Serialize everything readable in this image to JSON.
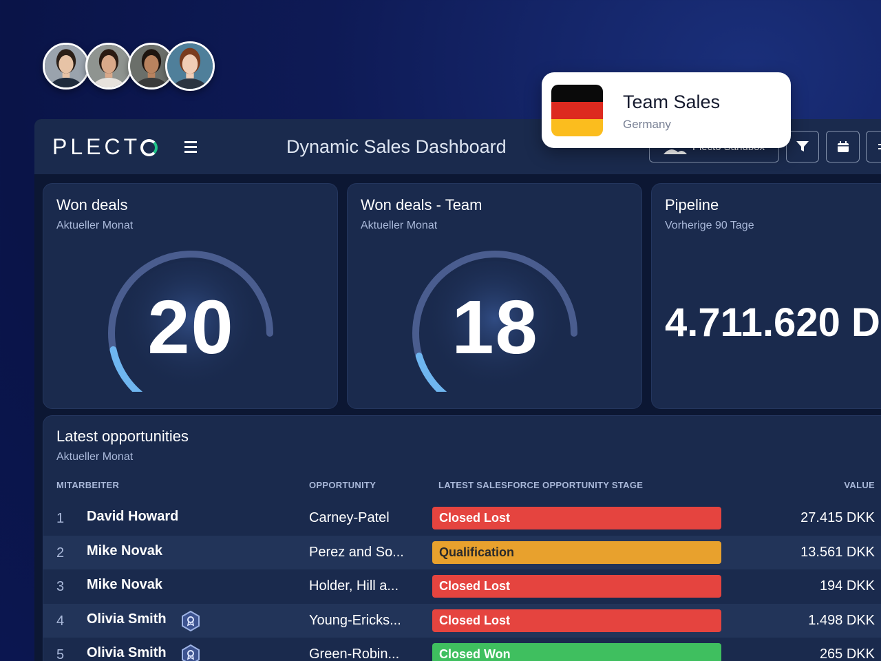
{
  "team_card": {
    "name": "Team Sales",
    "country": "Germany",
    "flag_colors": [
      "#0a0a0a",
      "#dd2a1f",
      "#fbbd1e"
    ]
  },
  "avatars": [
    {
      "name": "avatar-1",
      "skin": "#e7c3a6",
      "hair": "#2b1f18",
      "bg": "#9aa3ad",
      "shirt": "#1f2b3c"
    },
    {
      "name": "avatar-2",
      "skin": "#d9a98a",
      "hair": "#2a1a12",
      "bg": "#8f9490",
      "shirt": "#e7e2dc"
    },
    {
      "name": "avatar-3",
      "skin": "#b9835f",
      "hair": "#1d140f",
      "bg": "#6b6f6a",
      "shirt": "#3a3a3a"
    },
    {
      "name": "avatar-4",
      "skin": "#f0cdb6",
      "hair": "#7a3b1e",
      "bg": "#4f7f9a",
      "shirt": "#2c3440"
    }
  ],
  "topbar": {
    "logo": "PLECT",
    "title": "Dynamic Sales Dashboard",
    "user_button": "Plecto Sandbox"
  },
  "widgets": [
    {
      "title": "Won deals",
      "subtitle": "Aktueller Monat",
      "value": "20",
      "gauge_fraction": 0.2
    },
    {
      "title": "Won deals - Team",
      "subtitle": "Aktueller Monat",
      "value": "18",
      "gauge_fraction": 0.18
    },
    {
      "title": "Pipeline",
      "subtitle": "Vorherige 90 Tage",
      "value": "4.711.620 D"
    }
  ],
  "table": {
    "title": "Latest opportunities",
    "subtitle": "Aktueller Monat",
    "headers": {
      "employee": "MITARBEITER",
      "opportunity": "OPPORTUNITY",
      "stage": "LATEST SALESFORCE OPPORTUNITY STAGE",
      "value": "VALUE"
    },
    "rows": [
      {
        "rank": "1",
        "name": "David Howard",
        "badge": false,
        "opportunity": "Carney-Patel",
        "stage": "Closed Lost",
        "stage_color": "#e5443f",
        "value": "27.415 DKK"
      },
      {
        "rank": "2",
        "name": "Mike Novak",
        "badge": false,
        "opportunity": "Perez and So...",
        "stage": "Qualification",
        "stage_color": "#e8a12d",
        "value": "13.561 DKK"
      },
      {
        "rank": "3",
        "name": "Mike Novak",
        "badge": false,
        "opportunity": "Holder, Hill a...",
        "stage": "Closed Lost",
        "stage_color": "#e5443f",
        "value": "194 DKK"
      },
      {
        "rank": "4",
        "name": "Olivia Smith",
        "badge": true,
        "opportunity": "Young-Ericks...",
        "stage": "Closed Lost",
        "stage_color": "#e5443f",
        "value": "1.498 DKK"
      },
      {
        "rank": "5",
        "name": "Olivia Smith",
        "badge": true,
        "opportunity": "Green-Robin...",
        "stage": "Closed Won",
        "stage_color": "#3fbf5f",
        "value": "265 DKK"
      }
    ]
  },
  "colors": {
    "gauge_track": "#4a5d8f",
    "gauge_fill": "#6fb6f0",
    "accent_green": "#21c48a"
  }
}
